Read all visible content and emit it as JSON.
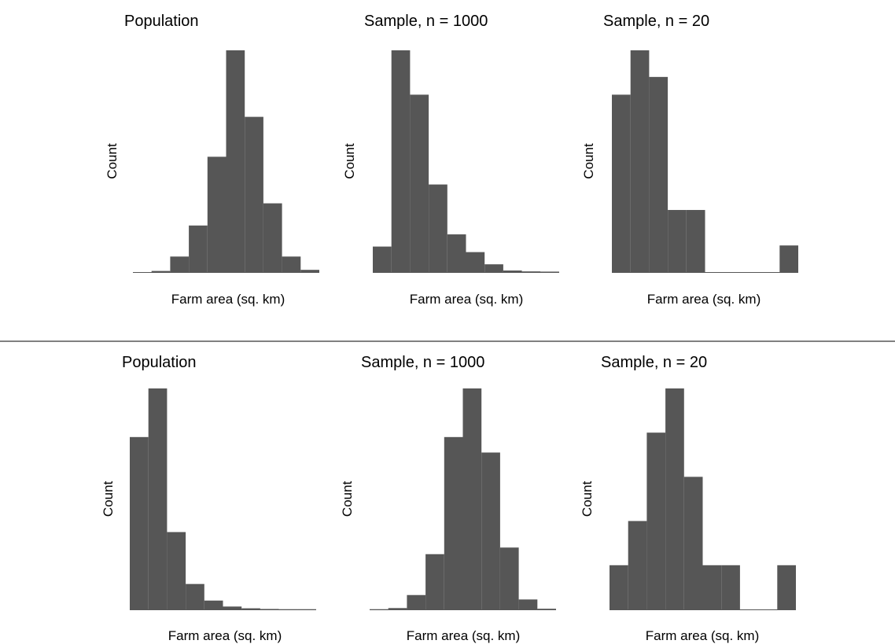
{
  "chart_data": [
    {
      "type": "bar",
      "title": "Population",
      "xlabel": "Farm area (sq. km)",
      "ylabel": "Count",
      "values": [
        0,
        0.5,
        7,
        21,
        52,
        100,
        70,
        31,
        7,
        1
      ],
      "ylim": [
        0,
        100
      ]
    },
    {
      "type": "bar",
      "title": "Sample, n = 1000",
      "xlabel": "Farm area (sq. km)",
      "ylabel": "Count",
      "values": [
        11.5,
        100,
        80,
        39.5,
        17,
        9,
        3.5,
        0.7,
        0.3,
        0.2
      ],
      "ylim": [
        0,
        100
      ]
    },
    {
      "type": "bar",
      "title": "Sample, n = 20",
      "xlabel": "Farm area (sq. km)",
      "ylabel": "Count",
      "values": [
        4,
        5,
        4.4,
        1.4,
        1.4,
        0,
        0,
        0,
        0,
        0.6
      ],
      "ylim": [
        0,
        5
      ]
    },
    {
      "type": "bar",
      "title": "Population",
      "xlabel": "Farm area (sq. km)",
      "ylabel": "Count",
      "values": [
        78,
        100,
        35,
        11.5,
        4,
        1.3,
        0.5,
        0.2,
        0.1,
        0.1
      ],
      "ylim": [
        0,
        100
      ]
    },
    {
      "type": "bar",
      "title": "Sample, n = 1000",
      "xlabel": "Farm area (sq. km)",
      "ylabel": "Count",
      "values": [
        0.1,
        0.6,
        6.5,
        25,
        78,
        100,
        71,
        28,
        4.5,
        0.3
      ],
      "ylim": [
        0,
        100
      ]
    },
    {
      "type": "bar",
      "title": "Sample, n = 20",
      "xlabel": "Farm area (sq. km)",
      "ylabel": "Count",
      "values": [
        1,
        2,
        4,
        5,
        3,
        1,
        1,
        0,
        0,
        1
      ],
      "ylim": [
        0,
        5
      ]
    }
  ]
}
